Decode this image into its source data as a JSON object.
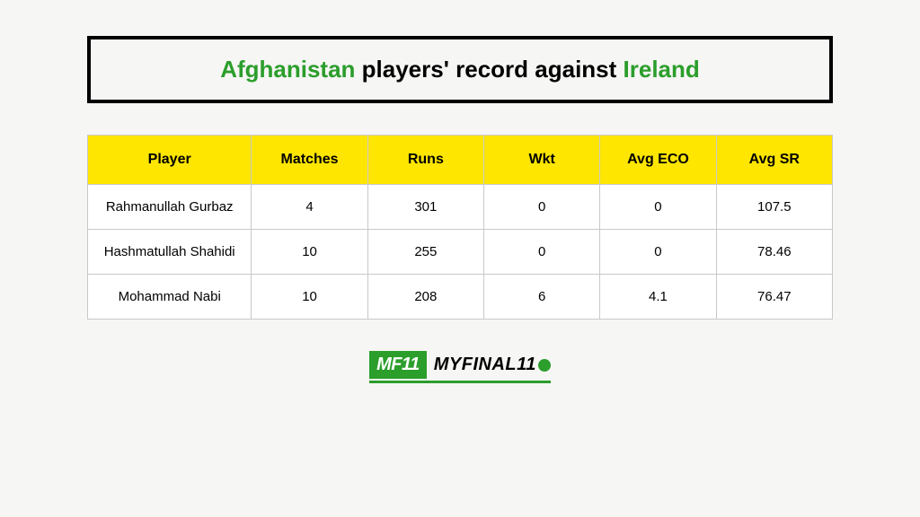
{
  "title": {
    "team1": "Afghanistan",
    "middle": " players' record against ",
    "team2": "Ireland"
  },
  "table": {
    "columns": [
      "Player",
      "Matches",
      "Runs",
      "Wkt",
      "Avg ECO",
      "Avg SR"
    ],
    "rows": [
      [
        "Rahmanullah Gurbaz",
        "4",
        "301",
        "0",
        "0",
        "107.5"
      ],
      [
        "Hashmatullah Shahidi",
        "10",
        "255",
        "0",
        "0",
        "78.46"
      ],
      [
        "Mohammad Nabi",
        "10",
        "208",
        "6",
        "4.1",
        "76.47"
      ]
    ],
    "header_bg": "#ffe600",
    "border_color": "#c9c9c9",
    "cell_bg": "#ffffff"
  },
  "logo": {
    "badge": "MF11",
    "text": "MYFINAL11",
    "accent_color": "#2b9e2b"
  },
  "background_color": "#f6f6f4"
}
